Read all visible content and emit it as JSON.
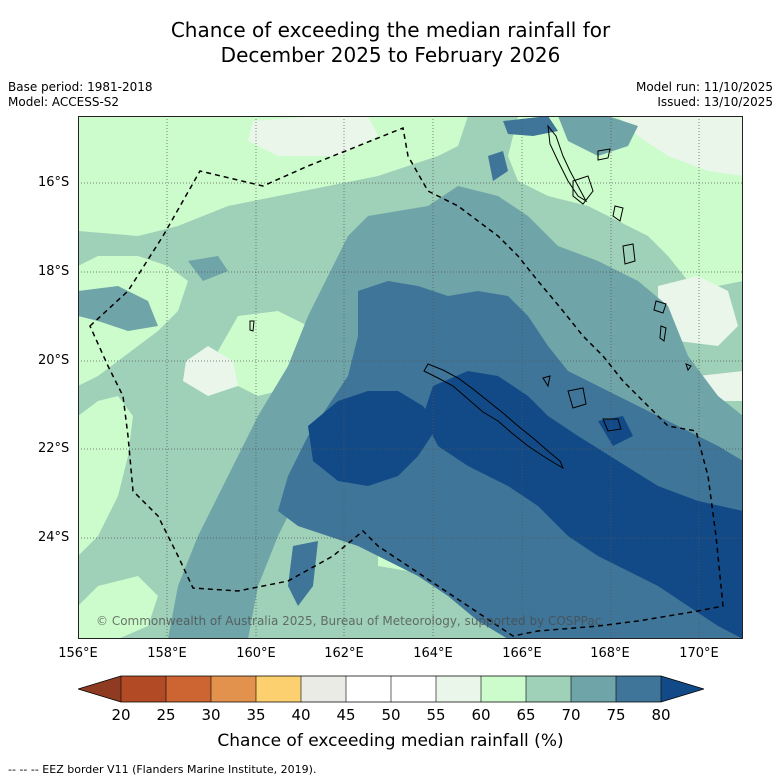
{
  "title": {
    "line1": "Chance of exceeding the median rainfall for",
    "line2": "December 2025 to February 2026"
  },
  "meta": {
    "base_period": "Base period: 1981-2018",
    "model": "Model: ACCESS-S2",
    "model_run": "Model run: 11/10/2025",
    "issued": "Issued: 13/10/2025"
  },
  "copyright": "© Commonwealth of Australia 2025, Bureau of Meteorology, supported by COSPPac",
  "map": {
    "lat_labels": [
      "16°S",
      "18°S",
      "20°S",
      "22°S",
      "24°S"
    ],
    "lon_labels": [
      "156°E",
      "158°E",
      "160°E",
      "162°E",
      "164°E",
      "166°E",
      "168°E",
      "170°E"
    ]
  },
  "colorbar": {
    "ticks": [
      "20",
      "25",
      "30",
      "35",
      "40",
      "45",
      "50",
      "55",
      "60",
      "65",
      "70",
      "75",
      "80"
    ],
    "label": "Chance of exceeding median rainfall (%)",
    "colors": {
      "below_min": "#8e3b22",
      "c20_25": "#b24a25",
      "c25_30": "#cd6532",
      "c30_35": "#e3924d",
      "c35_40": "#fcd06e",
      "c40_45": "#ebebe6",
      "c45_50": "#ffffff",
      "c50_55": "#ffffff",
      "c55_60": "#e9f6e9",
      "c60_65": "#ccfccc",
      "c65_70": "#9fd0b8",
      "c70_75": "#6fa4a8",
      "c75_80": "#3f7599",
      "above_max": "#124a87"
    }
  },
  "footnote": "--  --  -- EEZ border V11 (Flanders Marine Institute, 2019)."
}
